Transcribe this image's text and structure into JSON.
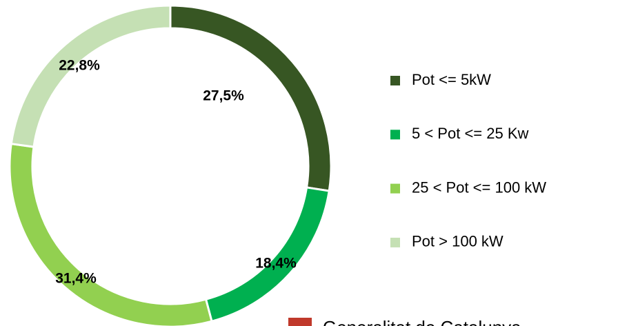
{
  "chart_data": {
    "type": "donut",
    "categories": [
      "Pot <= 5kW",
      "5 < Pot <= 25 Kw",
      "25 < Pot <= 100 kW",
      "Pot > 100 kW"
    ],
    "values": [
      27.5,
      18.4,
      31.4,
      22.8
    ],
    "value_labels": [
      "27,5%",
      "18,4%",
      "31,4%",
      "22,8%"
    ],
    "colors": [
      "#375623",
      "#00b050",
      "#92d050",
      "#c5e0b4"
    ],
    "legend": "right",
    "source": "Generalitat de Catalunya"
  }
}
